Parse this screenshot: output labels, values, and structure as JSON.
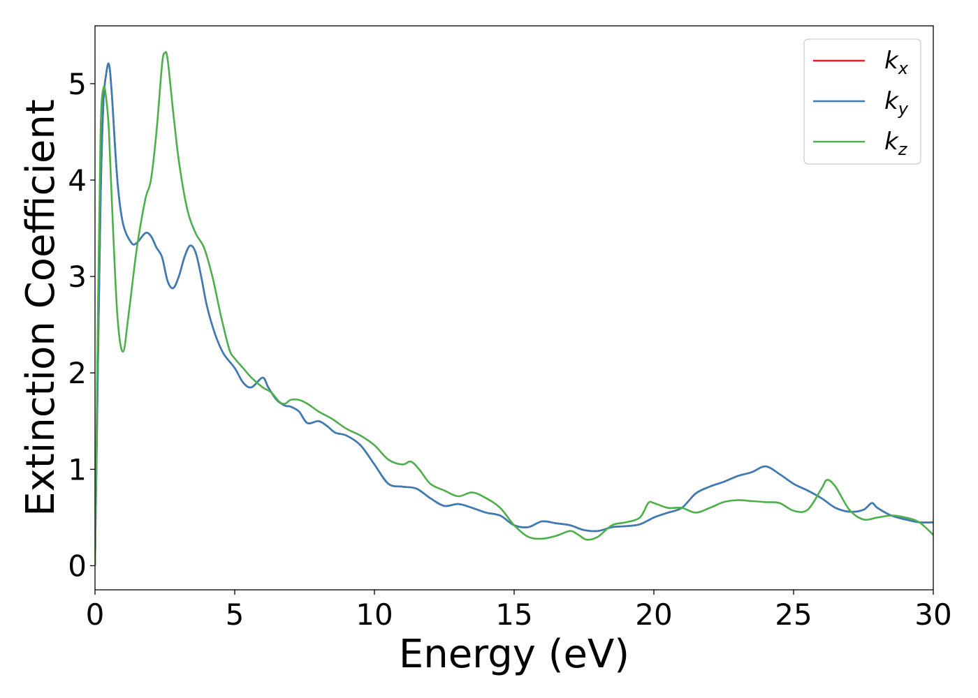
{
  "chart_data": {
    "type": "line",
    "xlabel": "Energy (eV)",
    "ylabel": "Extinction Coefficient",
    "xlim": [
      0,
      30
    ],
    "ylim": [
      -0.25,
      5.6
    ],
    "x_ticks": [
      0,
      5,
      10,
      15,
      20,
      25,
      30
    ],
    "x_tick_labels": [
      "0",
      "5",
      "10",
      "15",
      "20",
      "25",
      "30"
    ],
    "y_ticks": [
      0,
      1,
      2,
      3,
      4,
      5
    ],
    "y_tick_labels": [
      "0",
      "1",
      "2",
      "3",
      "4",
      "5"
    ],
    "grid": false,
    "legend": {
      "position": "top-right",
      "entries": [
        {
          "base": "k",
          "sub": "x",
          "color": "#e41a1c"
        },
        {
          "base": "k",
          "sub": "y",
          "color": "#377eb8"
        },
        {
          "base": "k",
          "sub": "z",
          "color": "#4daf4a"
        }
      ]
    },
    "series": [
      {
        "name": "kx",
        "color": "#e41a1c",
        "x": [
          0,
          0.1,
          0.2,
          0.3,
          0.4,
          0.5,
          0.6,
          0.8,
          1.0,
          1.3,
          1.5,
          1.8,
          2.0,
          2.2,
          2.4,
          2.6,
          2.8,
          3.0,
          3.2,
          3.4,
          3.6,
          3.8,
          4.0,
          4.3,
          4.6,
          5.0,
          5.3,
          5.6,
          6.0,
          6.2,
          6.5,
          6.8,
          7.0,
          7.3,
          7.6,
          8.0,
          8.3,
          8.6,
          9.0,
          9.5,
          10.0,
          10.5,
          11.0,
          11.5,
          12.0,
          12.5,
          13.0,
          13.5,
          14.0,
          14.5,
          15.0,
          15.5,
          16.0,
          16.5,
          17.0,
          17.5,
          18.0,
          18.5,
          19.0,
          19.5,
          20.0,
          20.5,
          21.0,
          21.5,
          22.0,
          22.5,
          23.0,
          23.5,
          24.0,
          24.5,
          25.0,
          25.5,
          26.0,
          26.5,
          27.0,
          27.5,
          27.8,
          28.0,
          28.5,
          29.0,
          29.5,
          30.0
        ],
        "y": [
          0,
          2.0,
          3.8,
          4.8,
          5.1,
          5.2,
          4.9,
          4.0,
          3.55,
          3.35,
          3.35,
          3.45,
          3.42,
          3.3,
          3.2,
          2.95,
          2.88,
          3.0,
          3.2,
          3.32,
          3.25,
          3.0,
          2.7,
          2.4,
          2.2,
          2.05,
          1.9,
          1.85,
          1.95,
          1.85,
          1.72,
          1.66,
          1.65,
          1.6,
          1.48,
          1.5,
          1.45,
          1.38,
          1.35,
          1.25,
          1.05,
          0.85,
          0.82,
          0.8,
          0.7,
          0.62,
          0.64,
          0.6,
          0.55,
          0.52,
          0.42,
          0.4,
          0.46,
          0.44,
          0.42,
          0.37,
          0.36,
          0.4,
          0.41,
          0.43,
          0.5,
          0.55,
          0.6,
          0.75,
          0.82,
          0.87,
          0.93,
          0.97,
          1.03,
          0.95,
          0.85,
          0.78,
          0.7,
          0.6,
          0.56,
          0.58,
          0.65,
          0.6,
          0.52,
          0.48,
          0.45,
          0.45
        ]
      },
      {
        "name": "ky",
        "color": "#377eb8",
        "x": [
          0,
          0.1,
          0.2,
          0.3,
          0.4,
          0.5,
          0.6,
          0.8,
          1.0,
          1.3,
          1.5,
          1.8,
          2.0,
          2.2,
          2.4,
          2.6,
          2.8,
          3.0,
          3.2,
          3.4,
          3.6,
          3.8,
          4.0,
          4.3,
          4.6,
          5.0,
          5.3,
          5.6,
          6.0,
          6.2,
          6.5,
          6.8,
          7.0,
          7.3,
          7.6,
          8.0,
          8.3,
          8.6,
          9.0,
          9.5,
          10.0,
          10.5,
          11.0,
          11.5,
          12.0,
          12.5,
          13.0,
          13.5,
          14.0,
          14.5,
          15.0,
          15.5,
          16.0,
          16.5,
          17.0,
          17.5,
          18.0,
          18.5,
          19.0,
          19.5,
          20.0,
          20.5,
          21.0,
          21.5,
          22.0,
          22.5,
          23.0,
          23.5,
          24.0,
          24.5,
          25.0,
          25.5,
          26.0,
          26.5,
          27.0,
          27.5,
          27.8,
          28.0,
          28.5,
          29.0,
          29.5,
          30.0
        ],
        "y": [
          0,
          2.0,
          3.8,
          4.8,
          5.1,
          5.2,
          4.9,
          4.0,
          3.55,
          3.35,
          3.35,
          3.45,
          3.42,
          3.3,
          3.2,
          2.95,
          2.88,
          3.0,
          3.2,
          3.32,
          3.25,
          3.0,
          2.7,
          2.4,
          2.2,
          2.05,
          1.9,
          1.85,
          1.95,
          1.85,
          1.72,
          1.66,
          1.65,
          1.6,
          1.48,
          1.5,
          1.45,
          1.38,
          1.35,
          1.25,
          1.05,
          0.85,
          0.82,
          0.8,
          0.7,
          0.62,
          0.64,
          0.6,
          0.55,
          0.52,
          0.42,
          0.4,
          0.46,
          0.44,
          0.42,
          0.37,
          0.36,
          0.4,
          0.41,
          0.43,
          0.5,
          0.55,
          0.6,
          0.75,
          0.82,
          0.87,
          0.93,
          0.97,
          1.03,
          0.95,
          0.85,
          0.78,
          0.7,
          0.6,
          0.56,
          0.58,
          0.65,
          0.6,
          0.52,
          0.48,
          0.45,
          0.45
        ]
      },
      {
        "name": "kz",
        "color": "#4daf4a",
        "x": [
          0,
          0.1,
          0.2,
          0.3,
          0.4,
          0.5,
          0.6,
          0.8,
          1.0,
          1.2,
          1.5,
          1.8,
          2.0,
          2.2,
          2.4,
          2.5,
          2.6,
          2.8,
          3.0,
          3.3,
          3.6,
          3.9,
          4.2,
          4.5,
          4.8,
          5.0,
          5.3,
          5.6,
          6.0,
          6.3,
          6.6,
          6.8,
          7.0,
          7.3,
          7.6,
          8.0,
          8.5,
          9.0,
          9.5,
          10.0,
          10.5,
          11.0,
          11.3,
          11.6,
          12.0,
          12.5,
          13.0,
          13.5,
          14.0,
          14.5,
          15.0,
          15.5,
          16.0,
          16.5,
          17.0,
          17.3,
          17.6,
          18.0,
          18.5,
          19.0,
          19.5,
          19.8,
          20.0,
          20.5,
          21.0,
          21.5,
          22.0,
          22.5,
          23.0,
          23.5,
          24.0,
          24.5,
          25.0,
          25.5,
          26.0,
          26.2,
          26.5,
          27.0,
          27.5,
          28.0,
          28.5,
          29.0,
          29.5,
          30.0
        ],
        "y": [
          0,
          2.5,
          4.5,
          4.95,
          4.85,
          4.5,
          3.8,
          2.6,
          2.22,
          2.6,
          3.3,
          3.8,
          4.0,
          4.5,
          5.2,
          5.32,
          5.25,
          4.7,
          4.2,
          3.7,
          3.45,
          3.3,
          3.0,
          2.6,
          2.25,
          2.15,
          2.05,
          1.95,
          1.85,
          1.8,
          1.7,
          1.68,
          1.72,
          1.72,
          1.68,
          1.6,
          1.52,
          1.42,
          1.35,
          1.25,
          1.1,
          1.05,
          1.08,
          1.0,
          0.85,
          0.78,
          0.72,
          0.76,
          0.7,
          0.6,
          0.42,
          0.3,
          0.28,
          0.31,
          0.36,
          0.32,
          0.27,
          0.3,
          0.42,
          0.45,
          0.5,
          0.65,
          0.65,
          0.6,
          0.6,
          0.55,
          0.6,
          0.66,
          0.68,
          0.67,
          0.66,
          0.65,
          0.57,
          0.58,
          0.8,
          0.89,
          0.82,
          0.58,
          0.48,
          0.5,
          0.52,
          0.5,
          0.45,
          0.32
        ]
      }
    ]
  }
}
